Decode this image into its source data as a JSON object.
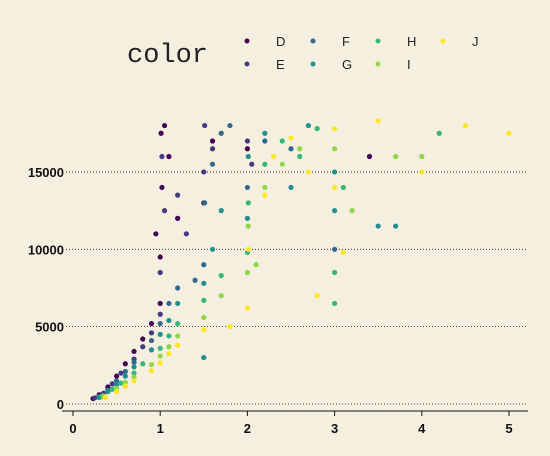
{
  "chart_data": {
    "type": "scatter",
    "title": "",
    "xlabel": "",
    "ylabel": "",
    "legend": {
      "title": "color",
      "position": "top",
      "entries": [
        {
          "name": "D",
          "color": "#440154"
        },
        {
          "name": "E",
          "color": "#443a83"
        },
        {
          "name": "F",
          "color": "#31688e"
        },
        {
          "name": "G",
          "color": "#21908d"
        },
        {
          "name": "H",
          "color": "#35b779"
        },
        {
          "name": "I",
          "color": "#8fd744"
        },
        {
          "name": "J",
          "color": "#fde725"
        }
      ]
    },
    "xlim": [
      -0.05,
      5.2
    ],
    "ylim": [
      -500,
      19000
    ],
    "x_ticks": [
      "0",
      "1",
      "2",
      "3",
      "4",
      "5"
    ],
    "x_tick_values": [
      0,
      1,
      2,
      3,
      4,
      5
    ],
    "y_ticks": [
      "0",
      "5000",
      "10000",
      "15000"
    ],
    "y_tick_values": [
      0,
      5000,
      10000,
      15000
    ],
    "grid": "horizontal dotted",
    "series": [
      {
        "name": "D",
        "points": [
          [
            0.23,
            350
          ],
          [
            0.3,
            600
          ],
          [
            0.4,
            1100
          ],
          [
            0.5,
            1800
          ],
          [
            0.6,
            2600
          ],
          [
            0.7,
            3400
          ],
          [
            0.8,
            4200
          ],
          [
            0.9,
            5200
          ],
          [
            1.0,
            6500
          ],
          [
            1.0,
            9500
          ],
          [
            1.02,
            14000
          ],
          [
            1.05,
            18000
          ],
          [
            1.1,
            16000
          ],
          [
            1.2,
            12000
          ],
          [
            0.95,
            11000
          ],
          [
            1.01,
            17500
          ],
          [
            1.5,
            13000
          ],
          [
            1.6,
            17000
          ],
          [
            2.0,
            16500
          ],
          [
            3.4,
            16000
          ]
        ]
      },
      {
        "name": "E",
        "points": [
          [
            0.25,
            400
          ],
          [
            0.35,
            700
          ],
          [
            0.45,
            1300
          ],
          [
            0.55,
            2000
          ],
          [
            0.7,
            2900
          ],
          [
            0.8,
            3700
          ],
          [
            0.9,
            4600
          ],
          [
            1.0,
            5800
          ],
          [
            1.0,
            8500
          ],
          [
            1.05,
            12500
          ],
          [
            1.2,
            13500
          ],
          [
            1.5,
            15000
          ],
          [
            1.6,
            16500
          ],
          [
            1.51,
            18000
          ],
          [
            2.0,
            17000
          ],
          [
            2.05,
            15500
          ],
          [
            1.3,
            11000
          ],
          [
            1.02,
            16000
          ]
        ]
      },
      {
        "name": "F",
        "points": [
          [
            0.3,
            500
          ],
          [
            0.4,
            900
          ],
          [
            0.5,
            1500
          ],
          [
            0.6,
            2100
          ],
          [
            0.7,
            2700
          ],
          [
            0.9,
            4100
          ],
          [
            1.0,
            5200
          ],
          [
            1.1,
            6500
          ],
          [
            1.2,
            7500
          ],
          [
            1.5,
            9000
          ],
          [
            1.51,
            13000
          ],
          [
            1.6,
            15500
          ],
          [
            1.7,
            17500
          ],
          [
            2.0,
            14000
          ],
          [
            2.2,
            17000
          ],
          [
            2.5,
            16500
          ],
          [
            3.0,
            10000
          ],
          [
            1.8,
            18000
          ],
          [
            1.4,
            8000
          ]
        ]
      },
      {
        "name": "G",
        "points": [
          [
            0.3,
            420
          ],
          [
            0.4,
            800
          ],
          [
            0.5,
            1250
          ],
          [
            0.6,
            1800
          ],
          [
            0.7,
            2400
          ],
          [
            0.9,
            3500
          ],
          [
            1.0,
            4500
          ],
          [
            1.1,
            5400
          ],
          [
            1.2,
            6500
          ],
          [
            1.5,
            7800
          ],
          [
            1.6,
            10000
          ],
          [
            1.7,
            12500
          ],
          [
            2.0,
            12000
          ],
          [
            2.01,
            16000
          ],
          [
            2.2,
            17500
          ],
          [
            2.5,
            14000
          ],
          [
            2.7,
            18000
          ],
          [
            3.0,
            15000
          ],
          [
            3.5,
            11500
          ],
          [
            3.7,
            11500
          ],
          [
            3.0,
            12500
          ],
          [
            1.5,
            3000
          ]
        ]
      },
      {
        "name": "H",
        "points": [
          [
            0.33,
            480
          ],
          [
            0.45,
            950
          ],
          [
            0.55,
            1350
          ],
          [
            0.7,
            2000
          ],
          [
            0.8,
            2600
          ],
          [
            1.0,
            3600
          ],
          [
            1.1,
            4400
          ],
          [
            1.2,
            5200
          ],
          [
            1.5,
            6700
          ],
          [
            1.7,
            8300
          ],
          [
            2.0,
            9800
          ],
          [
            2.01,
            13000
          ],
          [
            2.2,
            15500
          ],
          [
            2.4,
            17000
          ],
          [
            2.6,
            16000
          ],
          [
            2.8,
            17800
          ],
          [
            3.0,
            6500
          ],
          [
            3.1,
            14000
          ],
          [
            3.0,
            8500
          ],
          [
            4.2,
            17500
          ]
        ]
      },
      {
        "name": "I",
        "points": [
          [
            0.35,
            530
          ],
          [
            0.5,
            1000
          ],
          [
            0.6,
            1400
          ],
          [
            0.7,
            1750
          ],
          [
            0.9,
            2550
          ],
          [
            1.0,
            3100
          ],
          [
            1.1,
            3700
          ],
          [
            1.2,
            4400
          ],
          [
            1.5,
            5600
          ],
          [
            1.7,
            7000
          ],
          [
            2.0,
            8500
          ],
          [
            2.01,
            11500
          ],
          [
            2.2,
            14000
          ],
          [
            2.4,
            15500
          ],
          [
            2.6,
            16500
          ],
          [
            3.0,
            16500
          ],
          [
            3.2,
            12500
          ],
          [
            3.7,
            16000
          ],
          [
            4.0,
            16000
          ],
          [
            2.1,
            9000
          ]
        ]
      },
      {
        "name": "J",
        "points": [
          [
            0.37,
            420
          ],
          [
            0.5,
            800
          ],
          [
            0.6,
            1150
          ],
          [
            0.7,
            1500
          ],
          [
            0.9,
            2150
          ],
          [
            1.0,
            2650
          ],
          [
            1.1,
            3250
          ],
          [
            1.2,
            3800
          ],
          [
            1.5,
            4800
          ],
          [
            1.8,
            5000
          ],
          [
            2.0,
            6200
          ],
          [
            2.01,
            10000
          ],
          [
            2.2,
            13500
          ],
          [
            2.3,
            16000
          ],
          [
            2.5,
            17200
          ],
          [
            2.7,
            15000
          ],
          [
            3.0,
            17800
          ],
          [
            3.0,
            14000
          ],
          [
            3.5,
            18300
          ],
          [
            4.5,
            18000
          ],
          [
            5.0,
            17500
          ],
          [
            4.0,
            15000
          ],
          [
            2.8,
            7000
          ],
          [
            3.1,
            9800
          ]
        ]
      }
    ]
  }
}
